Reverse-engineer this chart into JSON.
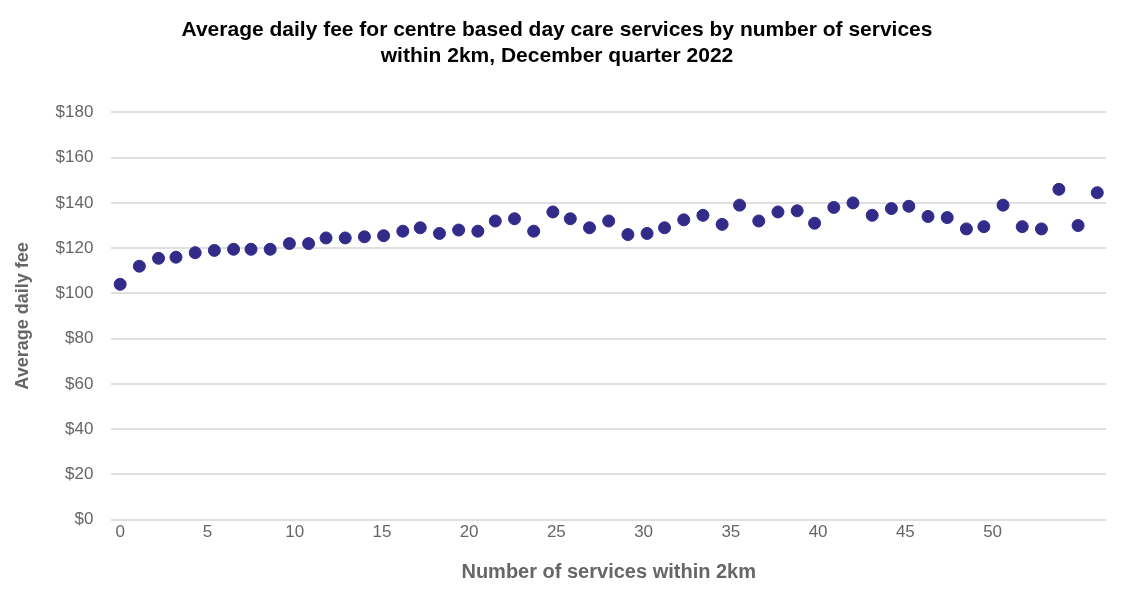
{
  "chart_data": {
    "type": "scatter",
    "title": "Average daily fee for centre based day care services by number of services within 2km, December quarter 2022",
    "xlabel": "Number of services within 2km",
    "ylabel": "Average daily fee",
    "x": [
      0,
      1.1,
      2.2,
      3.2,
      4.3,
      5.4,
      6.5,
      7.5,
      8.6,
      9.7,
      10.8,
      11.8,
      12.9,
      14,
      15.1,
      16.2,
      17.2,
      18.3,
      19.4,
      20.5,
      21.5,
      22.6,
      23.7,
      24.8,
      25.8,
      26.9,
      28,
      29.1,
      30.2,
      31.2,
      32.3,
      33.4,
      34.5,
      35.5,
      36.6,
      37.7,
      38.8,
      39.8,
      40.9,
      42,
      43.1,
      44.2,
      45.2,
      46.3,
      47.4,
      48.5,
      49.5,
      50.6,
      51.7,
      52.8,
      53.8,
      54.9,
      56
    ],
    "series": [
      {
        "color": "#332b8a",
        "values": [
          104,
          112,
          115.5,
          116,
          118,
          119,
          119.5,
          119.5,
          119.5,
          122,
          122,
          124.5,
          124.5,
          125,
          125.5,
          127.5,
          129,
          126.5,
          128,
          127.5,
          132,
          133,
          127.5,
          136,
          133,
          129,
          132,
          126,
          126.5,
          129,
          132.5,
          134.5,
          130.5,
          139,
          132,
          136,
          136.5,
          131,
          138,
          140,
          134.5,
          137.5,
          138.5,
          134,
          133.5,
          128.5,
          129.5,
          139,
          129.5,
          128.5,
          146,
          130,
          144.5
        ]
      }
    ],
    "xlim": [
      -0.5,
      56.5
    ],
    "xticks": [
      0,
      5,
      10,
      15,
      20,
      25,
      30,
      35,
      40,
      45,
      50
    ],
    "ylim": [
      0,
      180
    ],
    "yticks": [
      {
        "value": 0,
        "label": "$0"
      },
      {
        "value": 20,
        "label": "$20"
      },
      {
        "value": 40,
        "label": "$40"
      },
      {
        "value": 60,
        "label": "$60"
      },
      {
        "value": 80,
        "label": "$80"
      },
      {
        "value": 100,
        "label": "$100"
      },
      {
        "value": 120,
        "label": "$120"
      },
      {
        "value": 140,
        "label": "$140"
      },
      {
        "value": 160,
        "label": "$160"
      },
      {
        "value": 180,
        "label": "$180"
      }
    ],
    "grid": "y",
    "legend": false,
    "marker": "circle"
  }
}
